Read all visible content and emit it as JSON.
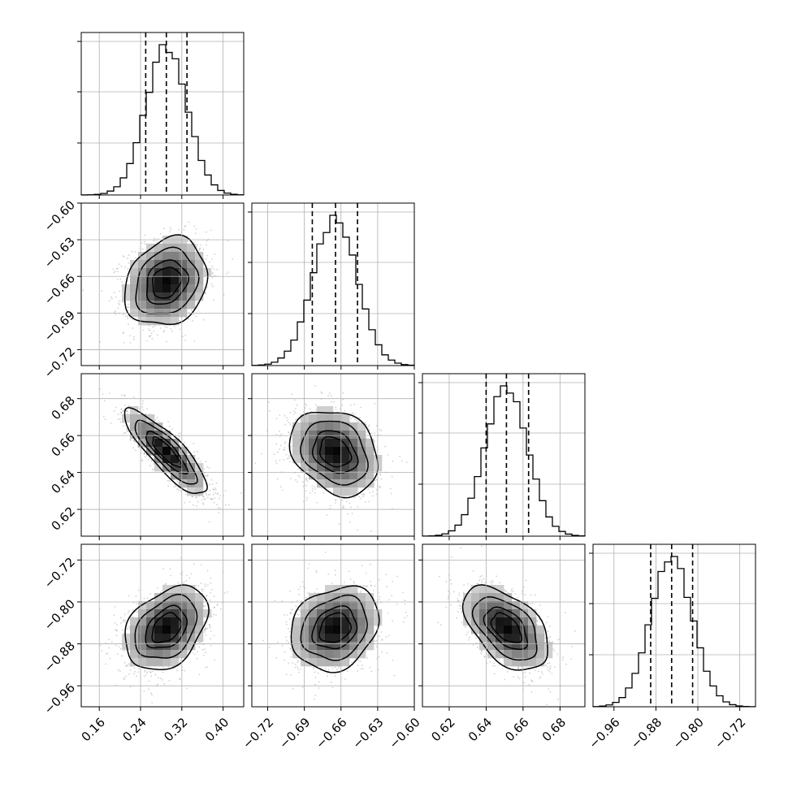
{
  "chart_data": {
    "type": "corner",
    "grid": true,
    "parameters": [
      {
        "ticks": [
          0.16,
          0.24,
          0.32,
          0.4
        ],
        "tick_labels": [
          "0.16",
          "0.24",
          "0.32",
          "0.40"
        ],
        "range": [
          0.125,
          0.44
        ],
        "quantiles": [
          0.25,
          0.29,
          0.33
        ],
        "mean": 0.29,
        "std": 0.04
      },
      {
        "ticks": [
          -0.72,
          -0.69,
          -0.66,
          -0.63,
          -0.6
        ],
        "tick_labels": [
          "−0.72",
          "−0.69",
          "−0.66",
          "−0.63",
          "−0.60"
        ],
        "range": [
          -0.733,
          -0.6
        ],
        "quantiles": [
          -0.6835,
          -0.6645,
          -0.6465
        ],
        "mean": -0.665,
        "std": 0.018
      },
      {
        "ticks": [
          0.62,
          0.64,
          0.66,
          0.68
        ],
        "tick_labels": [
          "0.62",
          "0.64",
          "0.66",
          "0.68"
        ],
        "range": [
          0.6055,
          0.6935
        ],
        "quantiles": [
          0.64,
          0.651,
          0.663
        ],
        "mean": 0.651,
        "std": 0.0115
      },
      {
        "ticks": [
          -0.96,
          -0.88,
          -0.8,
          -0.72
        ],
        "tick_labels": [
          "−0.96",
          "−0.88",
          "−0.80",
          "−0.72"
        ],
        "range": [
          -1.0,
          -0.69
        ],
        "quantiles": [
          -0.89,
          -0.85,
          -0.81
        ],
        "mean": -0.85,
        "std": 0.04
      }
    ],
    "correlations": [
      {
        "pair": [
          0,
          1
        ],
        "rho": 0.2
      },
      {
        "pair": [
          0,
          2
        ],
        "rho": -0.85
      },
      {
        "pair": [
          1,
          2
        ],
        "rho": -0.25
      },
      {
        "pair": [
          0,
          3
        ],
        "rho": 0.35
      },
      {
        "pair": [
          1,
          3
        ],
        "rho": 0.2
      },
      {
        "pair": [
          2,
          3
        ],
        "rho": -0.5
      }
    ],
    "contour_levels_sigma": [
      0.5,
      1.0,
      1.5,
      2.0
    ]
  }
}
